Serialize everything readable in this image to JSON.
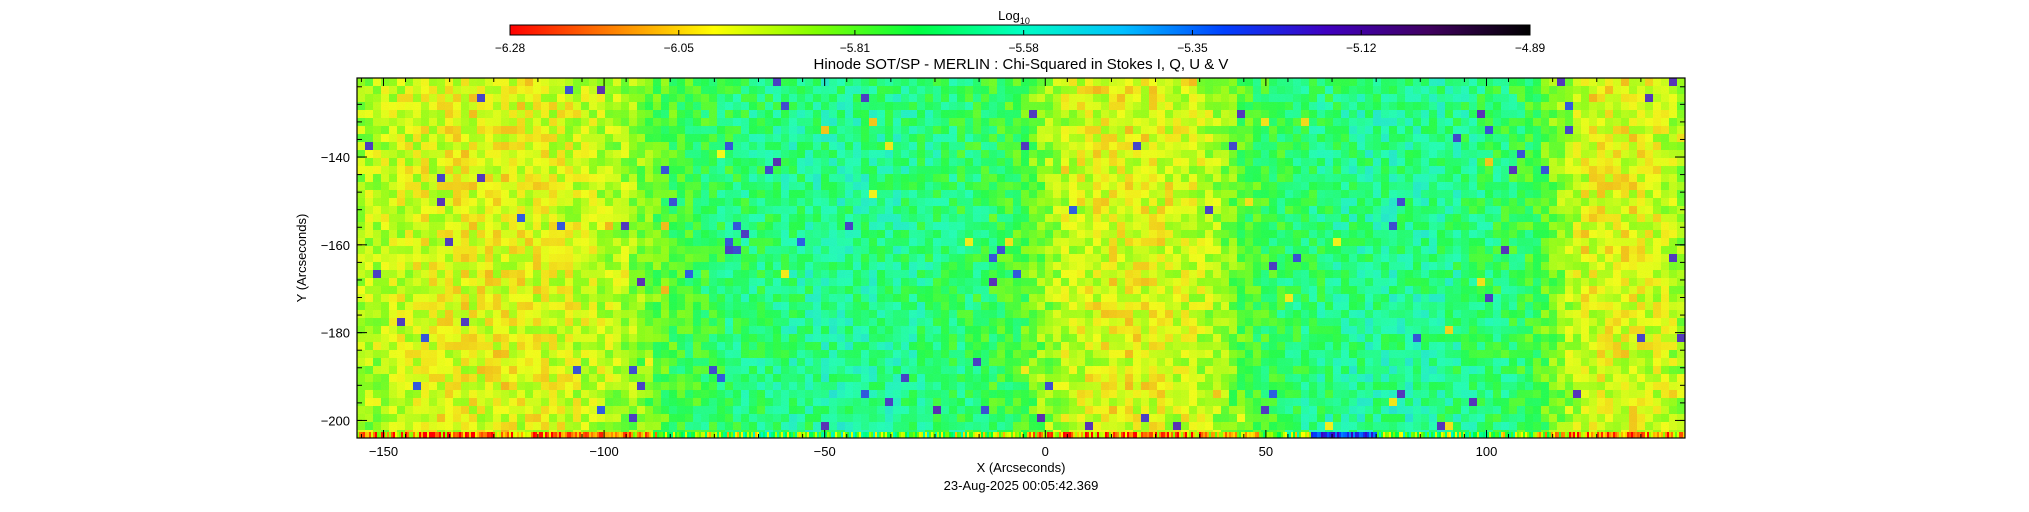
{
  "chart_data": {
    "type": "heatmap",
    "title": "Hinode SOT/SP - MERLIN : Chi-Squared in Stokes I, Q, U & V",
    "xlabel": "X (Arcseconds)",
    "ylabel": "Y (Arcseconds)",
    "xlim": [
      -156,
      145
    ],
    "ylim": [
      -204,
      -122
    ],
    "x_ticks": [
      -150,
      -100,
      -50,
      0,
      50,
      100
    ],
    "x_tick_labels": [
      "−150",
      "−100",
      "−50",
      "0",
      "50",
      "100"
    ],
    "y_ticks": [
      -140,
      -160,
      -180,
      -200
    ],
    "y_tick_labels": [
      "−140",
      "−160",
      "−180",
      "−200"
    ],
    "colorbar": {
      "label_base": "Log",
      "label_sub": "10",
      "min": -6.28,
      "max": -4.89,
      "ticks": [
        -6.28,
        -6.05,
        -5.81,
        -5.58,
        -5.35,
        -5.12,
        -4.89
      ],
      "tick_labels": [
        "−6.28",
        "−6.05",
        "−5.81",
        "−5.58",
        "−5.35",
        "−5.12",
        "−4.89"
      ],
      "colormap": [
        "#ff0000",
        "#ff8000",
        "#ffff00",
        "#80ff00",
        "#00ff40",
        "#00ffc0",
        "#00c0ff",
        "#0040ff",
        "#4000c0",
        "#400060",
        "#000000"
      ]
    },
    "field_summary": {
      "dominant_value_range": [
        -5.95,
        -5.6
      ],
      "bluer_regions_x": [
        [
          -80,
          -10
        ],
        [
          50,
          110
        ]
      ],
      "yellower_regions_x": [
        [
          -156,
          -95
        ],
        [
          0,
          40
        ],
        [
          115,
          145
        ]
      ],
      "bottom_edge_band": "mixed red/yellow/blue stripes"
    },
    "footer": "23-Aug-2025 00:05:42.369"
  }
}
